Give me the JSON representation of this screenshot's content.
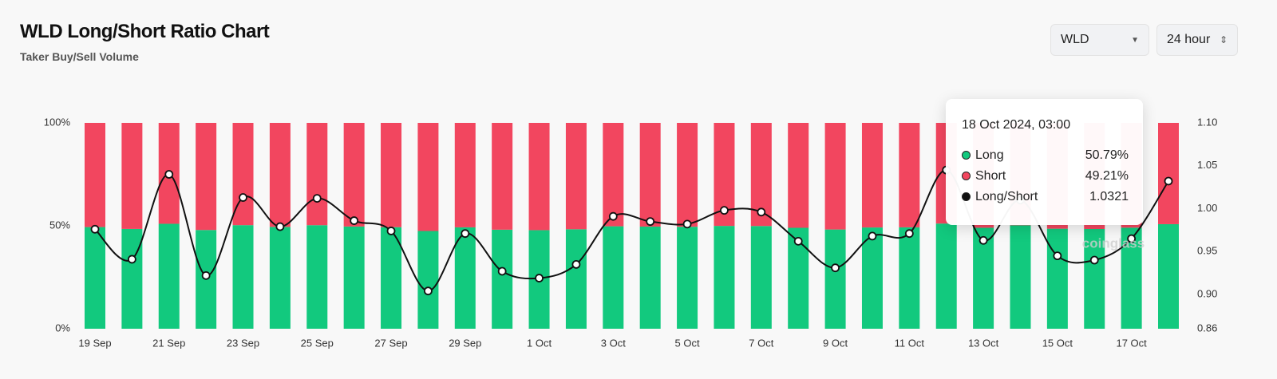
{
  "title": "WLD Long/Short Ratio Chart",
  "subtitle": "Taker Buy/Sell Volume",
  "controls": {
    "symbol": "WLD",
    "interval": "24 hour"
  },
  "watermark": "coinglass",
  "tooltip": {
    "title": "18 Oct 2024, 03:00",
    "values": [
      "50.79%",
      "49.21%",
      "1.0321"
    ]
  },
  "chart_data": {
    "type": "bar",
    "stacked": true,
    "categories": [
      "19 Sep",
      null,
      "21 Sep",
      null,
      "23 Sep",
      null,
      "25 Sep",
      null,
      "27 Sep",
      null,
      "29 Sep",
      null,
      "1 Oct",
      null,
      "3 Oct",
      null,
      "5 Oct",
      null,
      "7 Oct",
      null,
      "9 Oct",
      null,
      "11 Oct",
      null,
      "13 Oct",
      null,
      "15 Oct",
      null,
      "17 Oct",
      null
    ],
    "series": [
      {
        "name": "Long",
        "color": "#12c97e",
        "values": [
          49.39,
          48.48,
          50.98,
          47.97,
          50.32,
          49.47,
          50.3,
          49.65,
          49.34,
          47.48,
          49.26,
          48.11,
          47.89,
          48.32,
          49.77,
          49.62,
          49.55,
          49.95,
          49.9,
          49.03,
          48.21,
          49.19,
          49.26,
          51.1,
          49.06,
          50.25,
          48.59,
          48.45,
          49.11,
          50.79
        ]
      },
      {
        "name": "Short",
        "color": "#f2465f",
        "values": [
          50.61,
          51.52,
          49.02,
          52.03,
          49.68,
          50.53,
          49.7,
          50.35,
          50.66,
          52.52,
          50.74,
          51.89,
          52.11,
          51.68,
          50.23,
          50.38,
          50.45,
          50.05,
          50.1,
          50.97,
          51.79,
          50.81,
          50.74,
          48.9,
          50.94,
          49.75,
          51.41,
          51.55,
          50.89,
          49.21
        ]
      },
      {
        "name": "Long/Short",
        "color": "#111111",
        "axis": "y2",
        "type": "line",
        "values": [
          0.976,
          0.941,
          1.04,
          0.922,
          1.013,
          0.979,
          1.012,
          0.986,
          0.974,
          0.904,
          0.971,
          0.927,
          0.919,
          0.935,
          0.991,
          0.985,
          0.982,
          0.998,
          0.996,
          0.962,
          0.931,
          0.968,
          0.971,
          1.045,
          0.963,
          1.01,
          0.945,
          0.94,
          0.965,
          1.0321
        ]
      }
    ],
    "ylim": [
      0,
      100
    ],
    "yticks": [
      {
        "value": 0,
        "label": "0%"
      },
      {
        "value": 50,
        "label": "50%"
      },
      {
        "value": 100,
        "label": "100%"
      }
    ],
    "y2lim": [
      0.86,
      1.1
    ],
    "y2ticks": [
      {
        "value": 0.86,
        "label": "0.86"
      },
      {
        "value": 0.9,
        "label": "0.90"
      },
      {
        "value": 0.95,
        "label": "0.95"
      },
      {
        "value": 1.0,
        "label": "1.00"
      },
      {
        "value": 1.05,
        "label": "1.05"
      },
      {
        "value": 1.1,
        "label": "1.10"
      }
    ]
  }
}
